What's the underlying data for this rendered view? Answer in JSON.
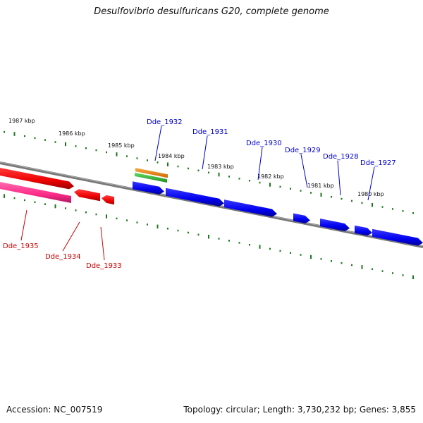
{
  "title": "Desulfovibrio desulfuricans G20, complete genome",
  "footer": {
    "accession": "Accession: NC_007519",
    "summary": "Topology: circular; Length: 3,730,232 bp; Genes: 3,855"
  },
  "colors": {
    "backbone": "#808080",
    "tick": "#1a7a1a",
    "forward_gene": "#0000ee",
    "reverse_gene": "#ee0000",
    "reverse_gene_alt": "#ff2a8a",
    "forward_label": "#0000cc",
    "reverse_label": "#cc0000",
    "rna_orange": "#ff8800",
    "rna_green": "#33bb33"
  },
  "ruler": {
    "unit": "kbp",
    "labels": [
      "1987 kbp",
      "1986 kbp",
      "1985 kbp",
      "1984 kbp",
      "1983 kbp",
      "1982 kbp",
      "1981 kbp",
      "1980 kbp"
    ]
  },
  "genes": [
    {
      "name": "Dde_1935",
      "strand": "reverse",
      "color": "pink"
    },
    {
      "name": "Dde_1934",
      "strand": "reverse",
      "color": "red"
    },
    {
      "name": "Dde_1933",
      "strand": "reverse",
      "color": "red"
    },
    {
      "name": "Dde_1932",
      "strand": "forward",
      "color": "blue"
    },
    {
      "name": "Dde_1931",
      "strand": "forward",
      "color": "blue"
    },
    {
      "name": "Dde_1930",
      "strand": "forward",
      "color": "blue"
    },
    {
      "name": "Dde_1929",
      "strand": "forward",
      "color": "blue"
    },
    {
      "name": "Dde_1928",
      "strand": "forward",
      "color": "blue"
    },
    {
      "name": "Dde_1927",
      "strand": "forward",
      "color": "blue"
    }
  ]
}
